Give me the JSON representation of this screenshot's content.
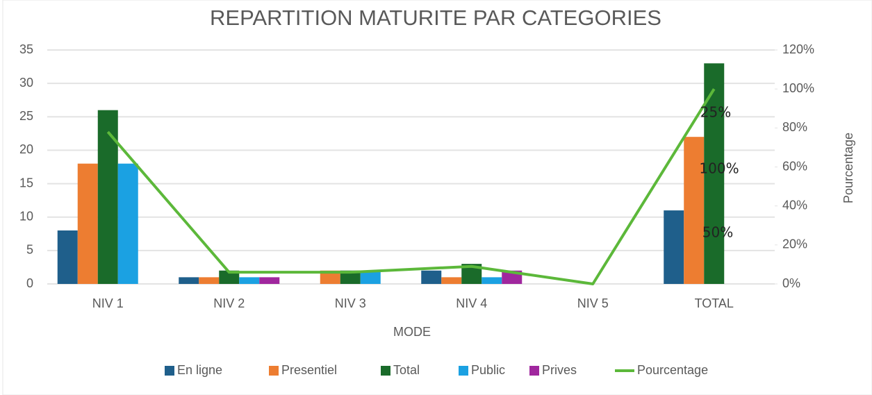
{
  "chart_data": {
    "type": "bar",
    "title": "REPARTITION MATURITE PAR CATEGORIES",
    "x_label": "MODE",
    "y2_label": "Pourcentage",
    "categories": [
      "NIV 1",
      "NIV 2",
      "NIV 3",
      "NIV 4",
      "NIV 5",
      "TOTAL"
    ],
    "series": [
      {
        "name": "En ligne",
        "color": "#1f5f8b",
        "values": [
          8,
          1,
          0,
          2,
          0,
          11
        ]
      },
      {
        "name": "Presentiel",
        "color": "#ed7d31",
        "values": [
          18,
          1,
          2,
          1,
          0,
          22
        ]
      },
      {
        "name": "Total",
        "color": "#1a6b2a",
        "values": [
          26,
          2,
          2,
          3,
          0,
          33
        ]
      },
      {
        "name": "Public",
        "color": "#1ba1e2",
        "values": [
          18,
          1,
          2,
          1,
          0,
          0
        ]
      },
      {
        "name": "Prives",
        "color": "#a0279e",
        "values": [
          0,
          1,
          0,
          2,
          0,
          0
        ]
      },
      {
        "name": "Pourcentage",
        "color": "#5cb83a",
        "type": "line",
        "axis": "y2",
        "values": [
          78,
          6,
          6,
          9,
          0,
          100
        ]
      }
    ],
    "ylim": [
      0,
      35
    ],
    "yticks": [
      0,
      5,
      10,
      15,
      20,
      25,
      30,
      35
    ],
    "y2lim": [
      0,
      120
    ],
    "y2ticks": [
      {
        "value": 0,
        "label": "0%"
      },
      {
        "value": 20,
        "label": "20%"
      },
      {
        "value": 40,
        "label": "40%"
      },
      {
        "value": 60,
        "label": "60%"
      },
      {
        "value": 80,
        "label": "80%"
      },
      {
        "value": 100,
        "label": "100%"
      },
      {
        "value": 120,
        "label": "120%"
      }
    ],
    "grid": true,
    "legend": "bottom",
    "annotations": [
      "25%",
      "100%",
      "50%"
    ]
  }
}
